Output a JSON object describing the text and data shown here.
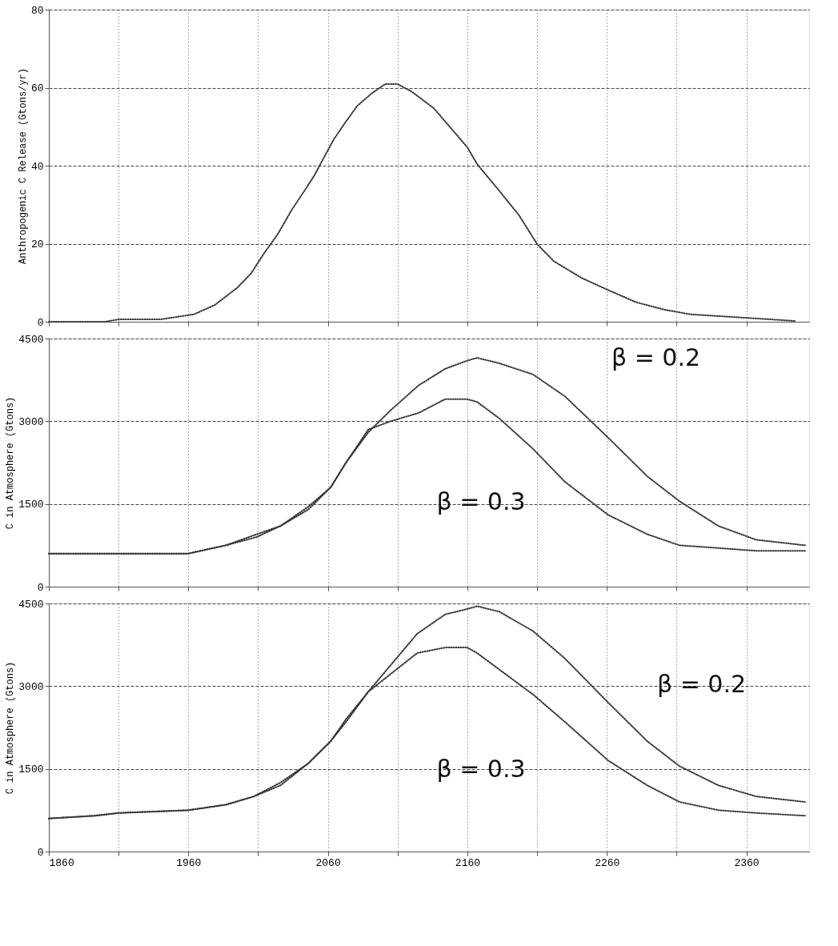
{
  "chart_data": [
    {
      "type": "line",
      "ylabel": "Anthropogenic C Release (Gtons/yr)",
      "xlim": [
        1860,
        2405
      ],
      "ylim": [
        0,
        80
      ],
      "yticks": [
        0,
        20,
        40,
        60,
        80
      ],
      "xticks": [
        1860,
        {
          "value": 1910,
          "label": null
        },
        1960,
        {
          "value": 2010,
          "label": null
        },
        2060,
        {
          "value": 2110,
          "label": null
        },
        2160,
        {
          "value": 2210,
          "label": null
        },
        2260,
        {
          "value": 2310,
          "label": null
        },
        2360
      ],
      "tick_labels": "y",
      "grid": true,
      "line_style": "dotted",
      "marker": "none",
      "series": [
        {
          "color": "#333333",
          "x": [
            1860,
            1900,
            1910,
            1940,
            1964,
            1979,
            1995,
            2005,
            2014,
            2024,
            2034,
            2044,
            2050,
            2064,
            2071,
            2081,
            2091,
            2101,
            2110,
            2120,
            2136,
            2148,
            2160,
            2167,
            2183,
            2197,
            2210,
            2222,
            2242,
            2261,
            2281,
            2301,
            2320,
            2360,
            2395
          ],
          "values": [
            0,
            0,
            0.6,
            0.6,
            1.9,
            4.3,
            8.7,
            12.4,
            17.4,
            22.4,
            28.6,
            34,
            37.3,
            46.6,
            50.3,
            55.3,
            58.4,
            60.9,
            60.9,
            59,
            54.7,
            49.7,
            44.7,
            40.4,
            33.5,
            27.3,
            19.9,
            15.5,
            11.2,
            8.1,
            5,
            3.1,
            1.9,
            1.0,
            0.2
          ]
        }
      ]
    },
    {
      "type": "line",
      "ylabel": "C in Atmosphere (Gtons)",
      "xlim": [
        1860,
        2405
      ],
      "ylim": [
        0,
        4500
      ],
      "yticks": [
        0,
        1500,
        3000,
        4500
      ],
      "xticks": [
        1860,
        {
          "value": 1910,
          "label": null
        },
        1960,
        {
          "value": 2010,
          "label": null
        },
        2060,
        {
          "value": 2110,
          "label": null
        },
        2160,
        {
          "value": 2210,
          "label": null
        },
        2260,
        {
          "value": 2310,
          "label": null
        },
        2360
      ],
      "tick_labels": "y",
      "grid": true,
      "line_style": "dotted",
      "marker": "none",
      "annotations": [
        "β = 0.2",
        "β = 0.3"
      ],
      "series": [
        {
          "color": "#333333",
          "x": [
            1860,
            1960,
            1987,
            2009,
            2026,
            2046,
            2062,
            2073,
            2089,
            2105,
            2125,
            2144,
            2160,
            2167,
            2183,
            2207,
            2230,
            2261,
            2289,
            2312,
            2340,
            2367,
            2402
          ],
          "values": [
            600,
            600,
            750,
            900,
            1100,
            1400,
            1800,
            2250,
            2800,
            3200,
            3650,
            3950,
            4100,
            4150,
            4050,
            3850,
            3450,
            2700,
            2000,
            1550,
            1100,
            850,
            750
          ]
        },
        {
          "color": "#333333",
          "x": [
            1860,
            1960,
            1987,
            2009,
            2026,
            2046,
            2062,
            2073,
            2089,
            2105,
            2125,
            2144,
            2160,
            2167,
            2183,
            2207,
            2230,
            2261,
            2289,
            2312,
            2340,
            2367,
            2402
          ],
          "values": [
            600,
            600,
            750,
            950,
            1100,
            1450,
            1800,
            2250,
            2850,
            3000,
            3150,
            3400,
            3400,
            3350,
            3050,
            2500,
            1900,
            1300,
            950,
            750,
            700,
            650,
            650
          ]
        }
      ]
    },
    {
      "type": "line",
      "ylabel": "C in Atmosphere (Gtons)",
      "xlim": [
        1860,
        2405
      ],
      "ylim": [
        0,
        4500
      ],
      "yticks": [
        0,
        1500,
        3000,
        4500
      ],
      "xticks": [
        1860,
        {
          "value": 1910,
          "label": null
        },
        1960,
        {
          "value": 2010,
          "label": null
        },
        2060,
        {
          "value": 2110,
          "label": null
        },
        2160,
        {
          "value": 2210,
          "label": null
        },
        2260,
        {
          "value": 2310,
          "label": null
        },
        2360
      ],
      "grid": true,
      "line_style": "dotted",
      "marker": "none",
      "annotations": [
        "β = 0.2",
        "β = 0.3"
      ],
      "series": [
        {
          "color": "#333333",
          "x": [
            1860,
            1893,
            1910,
            1960,
            1987,
            2007,
            2026,
            2046,
            2062,
            2073,
            2089,
            2104,
            2124,
            2144,
            2160,
            2167,
            2183,
            2207,
            2230,
            2261,
            2289,
            2312,
            2340,
            2367,
            2402
          ],
          "values": [
            600,
            650,
            700,
            750,
            850,
            1000,
            1200,
            1600,
            2000,
            2350,
            2900,
            3350,
            3950,
            4300,
            4400,
            4450,
            4350,
            4000,
            3500,
            2700,
            2000,
            1550,
            1200,
            1000,
            900
          ]
        },
        {
          "color": "#333333",
          "x": [
            1860,
            1893,
            1910,
            1960,
            1987,
            2007,
            2026,
            2046,
            2062,
            2073,
            2089,
            2104,
            2124,
            2144,
            2160,
            2167,
            2183,
            2207,
            2230,
            2261,
            2289,
            2312,
            2340,
            2367,
            2402
          ],
          "values": [
            600,
            650,
            700,
            750,
            850,
            1000,
            1250,
            1600,
            2000,
            2400,
            2900,
            3200,
            3600,
            3700,
            3700,
            3600,
            3300,
            2850,
            2350,
            1650,
            1200,
            900,
            750,
            700,
            650
          ]
        }
      ]
    }
  ]
}
